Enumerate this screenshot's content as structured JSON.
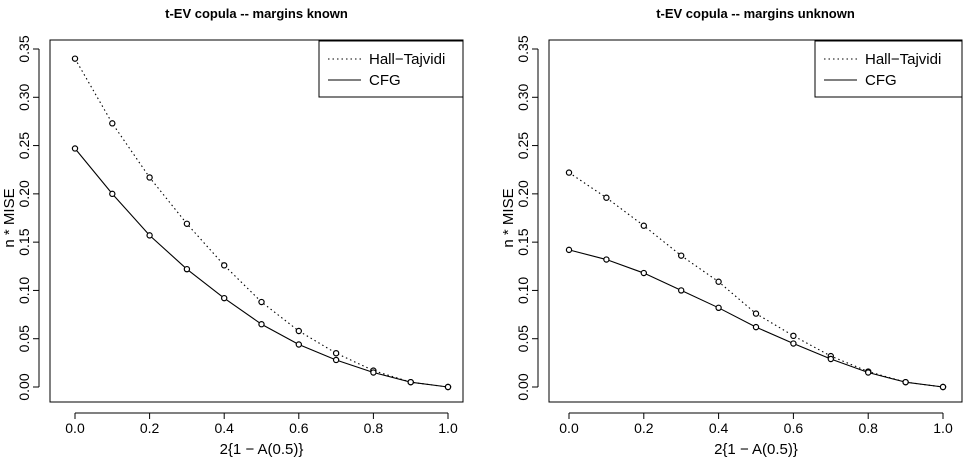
{
  "chart_data": [
    {
      "type": "line",
      "title": "t-EV copula -- margins known",
      "xlabel": "2{1 − A(0.5)}",
      "ylabel": "n * MISE",
      "xlim": [
        0,
        1
      ],
      "ylim": [
        0,
        0.35
      ],
      "x_ticks": [
        "0.0",
        "0.2",
        "0.4",
        "0.6",
        "0.8",
        "1.0"
      ],
      "y_ticks": [
        "0.00",
        "0.05",
        "0.10",
        "0.15",
        "0.20",
        "0.25",
        "0.30",
        "0.35"
      ],
      "legend_position": "top-right",
      "grid": false,
      "x": [
        0.0,
        0.1,
        0.2,
        0.3,
        0.4,
        0.5,
        0.6,
        0.7,
        0.8,
        0.9,
        1.0
      ],
      "series": [
        {
          "name": "Hall−Tajvidi",
          "line_style": "dotted",
          "values": [
            0.34,
            0.273,
            0.217,
            0.169,
            0.126,
            0.088,
            0.058,
            0.035,
            0.017,
            0.005,
            0.0
          ]
        },
        {
          "name": "CFG",
          "line_style": "solid",
          "values": [
            0.247,
            0.2,
            0.157,
            0.122,
            0.092,
            0.065,
            0.044,
            0.028,
            0.015,
            0.005,
            0.0
          ]
        }
      ]
    },
    {
      "type": "line",
      "title": "t-EV copula -- margins unknown",
      "xlabel": "2{1 − A(0.5)}",
      "ylabel": "n * MISE",
      "xlim": [
        0,
        1
      ],
      "ylim": [
        0,
        0.35
      ],
      "x_ticks": [
        "0.0",
        "0.2",
        "0.4",
        "0.6",
        "0.8",
        "1.0"
      ],
      "y_ticks": [
        "0.00",
        "0.05",
        "0.10",
        "0.15",
        "0.20",
        "0.25",
        "0.30",
        "0.35"
      ],
      "legend_position": "top-right",
      "grid": false,
      "x": [
        0.0,
        0.1,
        0.2,
        0.3,
        0.4,
        0.5,
        0.6,
        0.7,
        0.8,
        0.9,
        1.0
      ],
      "series": [
        {
          "name": "Hall−Tajvidi",
          "line_style": "dotted",
          "values": [
            0.222,
            0.196,
            0.167,
            0.136,
            0.109,
            0.076,
            0.053,
            0.032,
            0.016,
            0.005,
            0.0
          ]
        },
        {
          "name": "CFG",
          "line_style": "solid",
          "values": [
            0.142,
            0.132,
            0.118,
            0.1,
            0.082,
            0.062,
            0.045,
            0.029,
            0.015,
            0.005,
            0.0
          ]
        }
      ]
    }
  ]
}
